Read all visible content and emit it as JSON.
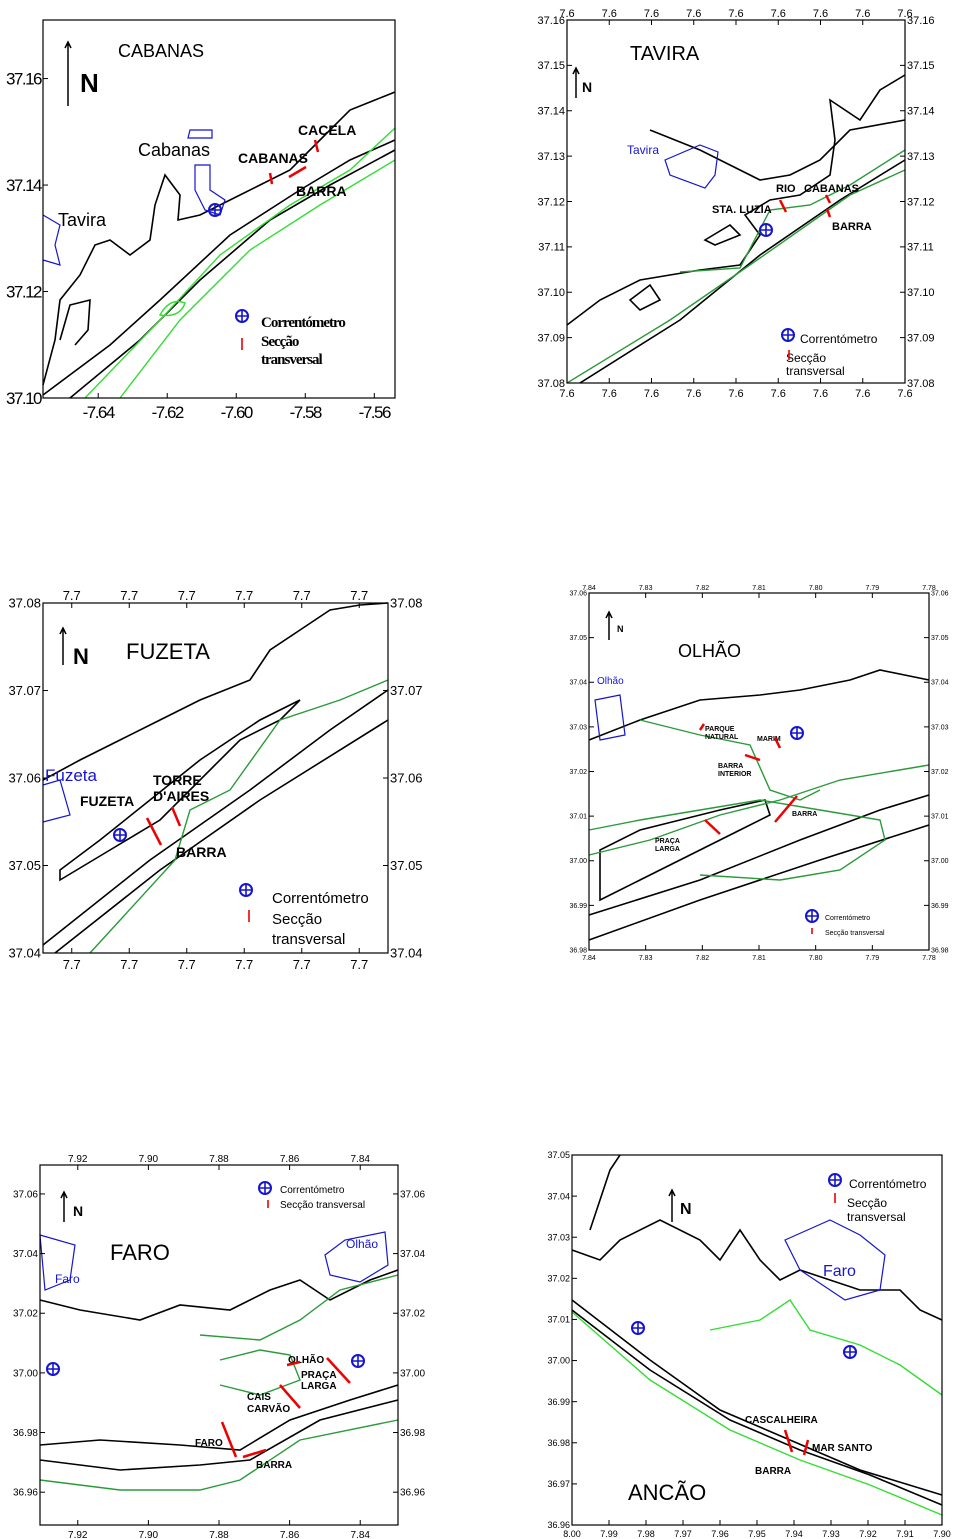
{
  "maps": [
    {
      "title": "CABANAS",
      "north": "N",
      "ylim": [
        37.1,
        37.171
      ],
      "yticks": [
        37.16,
        37.14,
        37.12,
        {
          "value": 37.1,
          "label": "37.10"
        }
      ],
      "xlim": [
        -7.656,
        -7.554
      ],
      "xticks": [
        -7.64,
        -7.62,
        {
          "value": -7.6,
          "label": "-7.60"
        },
        -7.58,
        -7.56
      ],
      "labels": [
        "Cabanas",
        "Tavira",
        "CACELA",
        "CABANAS",
        "BARRA"
      ],
      "legend": [
        "Correntómetro",
        "Secção",
        "transversal"
      ]
    },
    {
      "title": "TAVIRA",
      "north": "N",
      "ylim": [
        37.08,
        37.16
      ],
      "yticks": [
        37.16,
        37.15,
        37.14,
        37.13,
        37.12,
        37.11,
        {
          "value": 37.1,
          "label": "37.10"
        },
        37.09,
        37.08
      ],
      "xlim": [
        7.64,
        7.56
      ],
      "xticks": [
        {
          "value": 7.64,
          "label": "7.6"
        },
        {
          "value": 7.63,
          "label": "7.6"
        },
        {
          "value": 7.62,
          "label": "7.6"
        },
        {
          "value": 7.61,
          "label": "7.6"
        },
        {
          "value": 7.6,
          "label": "7.6"
        },
        {
          "value": 7.59,
          "label": "7.6"
        },
        {
          "value": 7.58,
          "label": "7.6"
        },
        {
          "value": 7.57,
          "label": "7.6"
        },
        {
          "value": 7.56,
          "label": "7.6"
        }
      ],
      "labels": [
        "Tavira",
        "RIO",
        "CABANAS",
        "STA. LUZIA",
        "BARRA"
      ],
      "legend": [
        "Correntómetro",
        "Secção",
        "transversal"
      ]
    },
    {
      "title": "FUZETA",
      "north": "N",
      "ylim": [
        37.04,
        37.08
      ],
      "yticks": [
        37.08,
        37.07,
        37.06,
        37.05,
        37.04
      ],
      "xlim": [
        7.745,
        7.685
      ],
      "xticks": [
        {
          "value": 7.74,
          "label": "7.7"
        },
        {
          "value": 7.73,
          "label": "7.7"
        },
        {
          "value": 7.72,
          "label": "7.7"
        },
        {
          "value": 7.71,
          "label": "7.7"
        },
        {
          "value": 7.7,
          "label": "7.7"
        },
        {
          "value": 7.69,
          "label": "7.7"
        }
      ],
      "labels": [
        "Fuzeta",
        "FUZETA",
        "TORRE",
        "D'AIRES",
        "BARRA"
      ],
      "legend": [
        "Correntómetro",
        "Secção",
        "transversal"
      ]
    },
    {
      "title": "OLHÃO",
      "north": "N",
      "ylim": [
        36.98,
        37.06
      ],
      "yticks": [
        37.06,
        37.05,
        37.04,
        37.03,
        37.02,
        37.01,
        {
          "value": 37,
          "label": "37.00"
        },
        36.99,
        36.98
      ],
      "xlim": [
        7.84,
        7.78
      ],
      "xticks": [
        7.84,
        7.83,
        7.82,
        7.81,
        {
          "value": 7.8,
          "label": "7.80"
        },
        7.79,
        7.78
      ],
      "labels": [
        "Olhão",
        "PARQUE",
        "NATURAL",
        "MARIM",
        "BARRA",
        "INTERIOR",
        "BARRA",
        "PRAÇA",
        "LARGA"
      ],
      "legend": [
        "Correntómetro",
        "Secção transversal"
      ]
    },
    {
      "title": "FARO",
      "north": "N",
      "ylim": [
        36.949,
        37.0697
      ],
      "yticks": [
        37.06,
        37.04,
        37.02,
        {
          "value": 37,
          "label": "37.00"
        },
        36.98,
        36.96
      ],
      "xlim": [
        7.9307,
        7.8293
      ],
      "xticks": [
        7.92,
        {
          "value": 7.9,
          "label": "7.90"
        },
        7.88,
        7.86,
        7.84
      ],
      "labels": [
        "Faro",
        "Olhão",
        "OLHÃO",
        "PRAÇA",
        "LARGA",
        "CAIS",
        "CARVÃO",
        "FARO",
        "BARRA"
      ],
      "legend": [
        "Correntómetro",
        "Secção transversal"
      ]
    },
    {
      "title": "ANCÃO",
      "north": "N",
      "ylim": [
        36.96,
        37.05
      ],
      "yticks": [
        37.05,
        37.04,
        37.03,
        37.02,
        37.01,
        {
          "value": 37,
          "label": "37.00"
        },
        36.99,
        36.98,
        36.97,
        36.96
      ],
      "xlim": [
        8,
        7.9
      ],
      "xticks": [
        {
          "value": 8,
          "label": "8.00"
        },
        7.99,
        7.98,
        7.97,
        7.96,
        7.95,
        7.94,
        7.93,
        7.92,
        7.91,
        {
          "value": 7.9,
          "label": "7.90"
        }
      ],
      "labels": [
        "Faro",
        "CASCALHEIRA",
        "MAR SANTO",
        "BARRA"
      ],
      "legend": [
        "Correntómetro",
        "Secção",
        "transversal"
      ]
    }
  ]
}
